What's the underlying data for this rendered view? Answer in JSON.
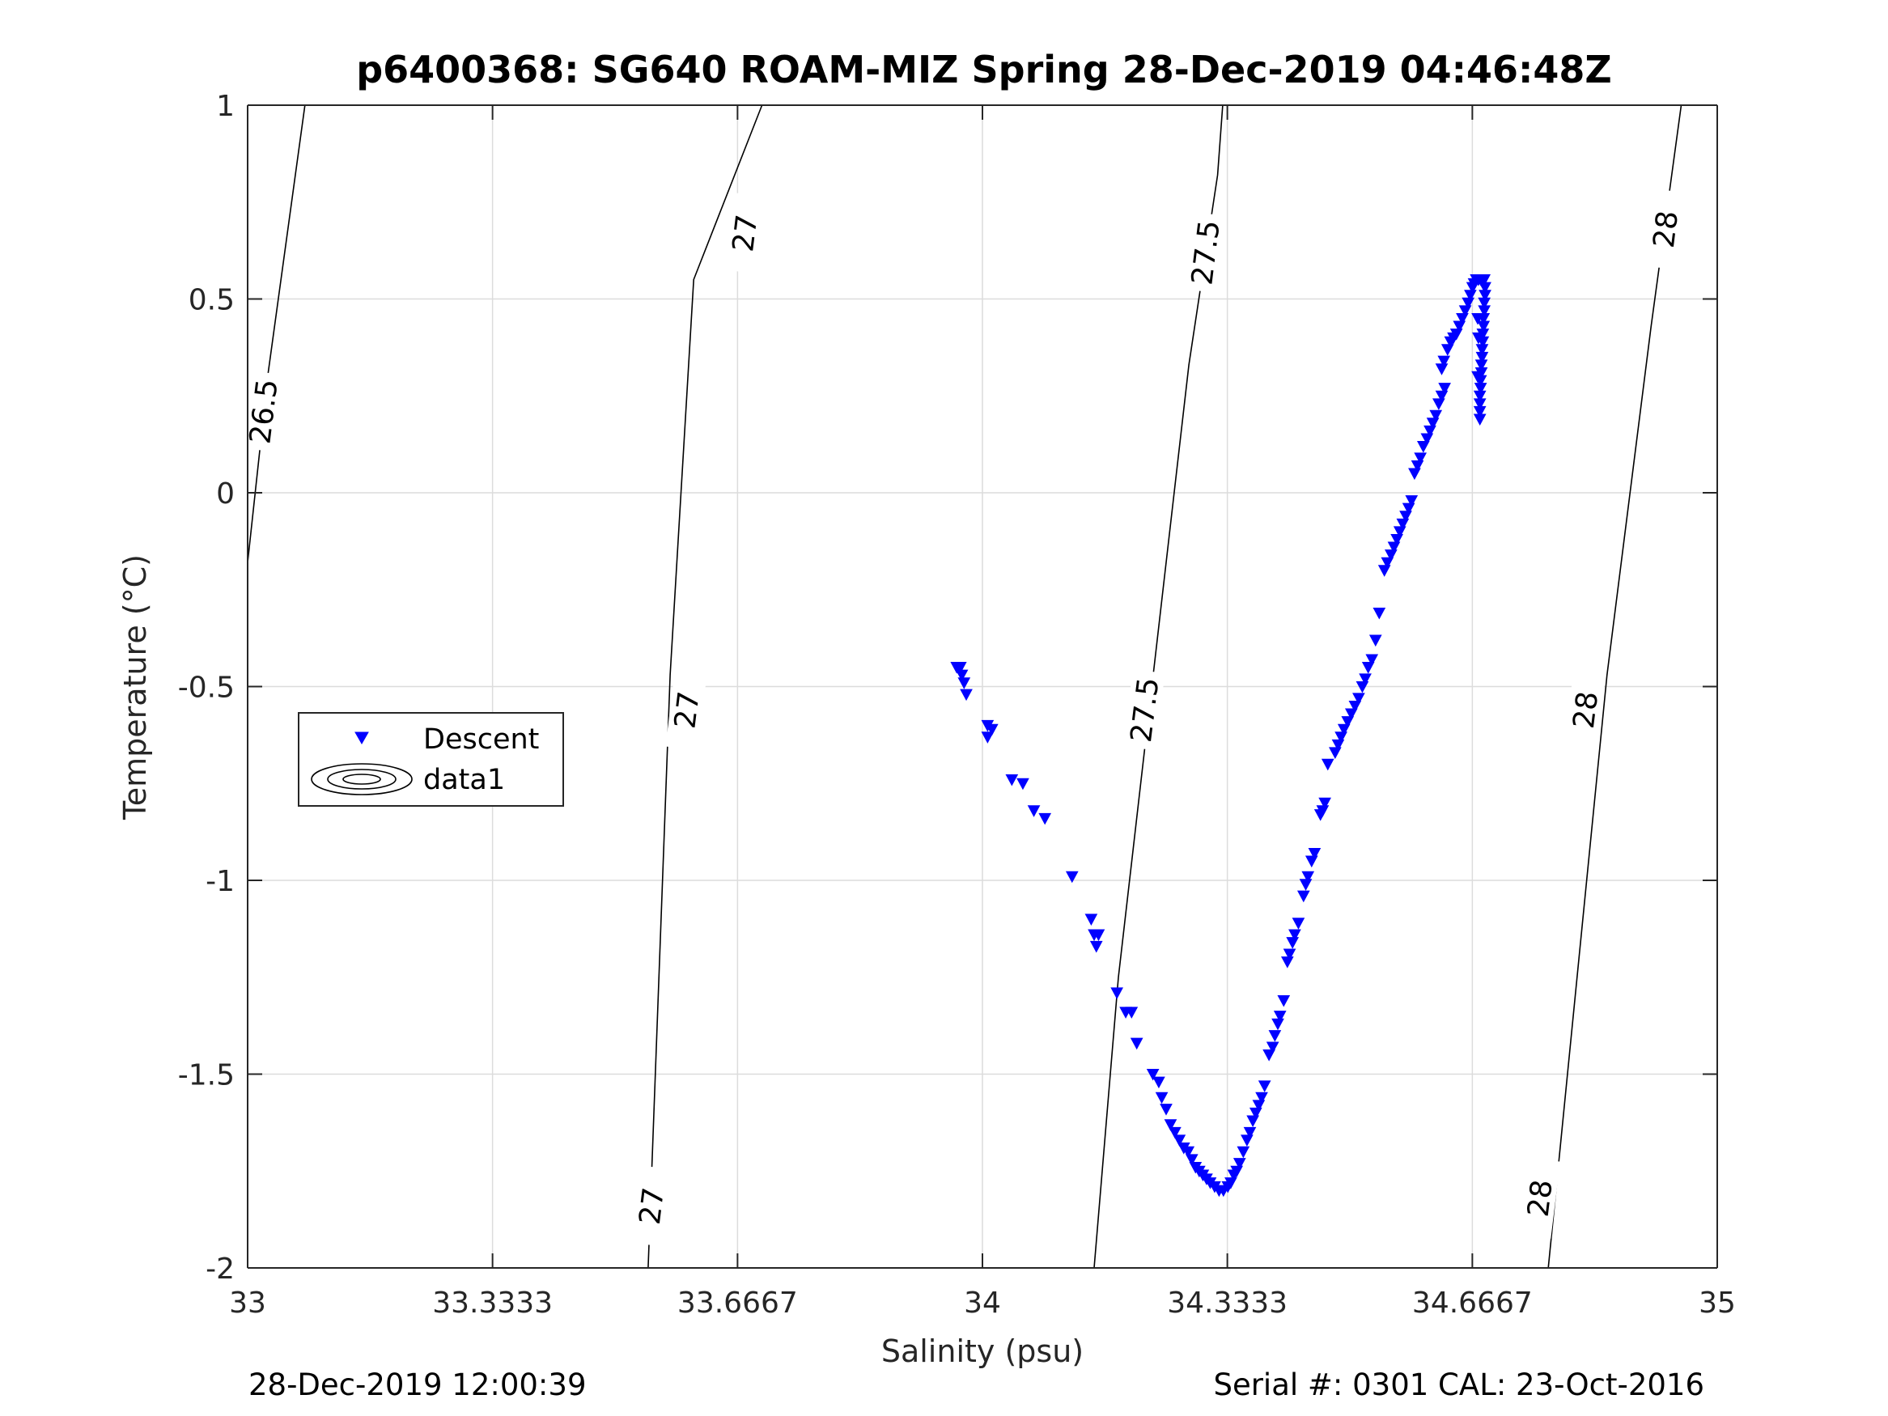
{
  "chart_data": {
    "type": "scatter",
    "title": "p6400368: SG640 ROAM-MIZ Spring 28-Dec-2019 04:46:48Z",
    "xlabel": "Salinity (psu)",
    "ylabel": "Temperature (°C)",
    "xlim": [
      33,
      35
    ],
    "ylim": [
      -2,
      1
    ],
    "xticks": [
      33,
      33.3333,
      33.6667,
      34,
      34.3333,
      34.6667,
      35
    ],
    "xtick_labels": [
      "33",
      "33.3333",
      "33.6667",
      "34",
      "34.3333",
      "34.6667",
      "35"
    ],
    "yticks": [
      -2,
      -1.5,
      -1,
      -0.5,
      0,
      0.5,
      1
    ],
    "ytick_labels": [
      "-2",
      "-1.5",
      "-1",
      "-0.5",
      "0",
      "0.5",
      "1"
    ],
    "grid": true,
    "legend": {
      "placement": "left-middle",
      "entries": [
        {
          "label": "Descent",
          "marker": "triangle-down",
          "color": "#0000ff"
        },
        {
          "label": "data1",
          "marker": "contour",
          "color": "#000000"
        }
      ]
    },
    "series": [
      {
        "name": "Descent",
        "color": "#0000ff",
        "marker": "triangle-down",
        "points": [
          [
            33.965,
            -0.45
          ],
          [
            33.97,
            -0.45
          ],
          [
            33.972,
            -0.47
          ],
          [
            33.975,
            -0.49
          ],
          [
            33.978,
            -0.52
          ],
          [
            34.007,
            -0.6
          ],
          [
            34.013,
            -0.61
          ],
          [
            34.007,
            -0.63
          ],
          [
            34.04,
            -0.74
          ],
          [
            34.055,
            -0.75
          ],
          [
            34.07,
            -0.82
          ],
          [
            34.085,
            -0.84
          ],
          [
            34.122,
            -0.99
          ],
          [
            34.148,
            -1.1
          ],
          [
            34.152,
            -1.14
          ],
          [
            34.158,
            -1.14
          ],
          [
            34.155,
            -1.17
          ],
          [
            34.183,
            -1.29
          ],
          [
            34.195,
            -1.34
          ],
          [
            34.203,
            -1.34
          ],
          [
            34.21,
            -1.42
          ],
          [
            34.232,
            -1.5
          ],
          [
            34.24,
            -1.52
          ],
          [
            34.244,
            -1.56
          ],
          [
            34.25,
            -1.59
          ],
          [
            34.256,
            -1.63
          ],
          [
            34.262,
            -1.65
          ],
          [
            34.268,
            -1.67
          ],
          [
            34.274,
            -1.69
          ],
          [
            34.28,
            -1.7
          ],
          [
            34.285,
            -1.72
          ],
          [
            34.29,
            -1.74
          ],
          [
            34.295,
            -1.75
          ],
          [
            34.3,
            -1.76
          ],
          [
            34.305,
            -1.77
          ],
          [
            34.31,
            -1.78
          ],
          [
            34.316,
            -1.79
          ],
          [
            34.322,
            -1.8
          ],
          [
            34.328,
            -1.8
          ],
          [
            34.334,
            -1.79
          ],
          [
            34.338,
            -1.78
          ],
          [
            34.342,
            -1.76
          ],
          [
            34.346,
            -1.75
          ],
          [
            34.35,
            -1.73
          ],
          [
            34.355,
            -1.7
          ],
          [
            34.36,
            -1.67
          ],
          [
            34.364,
            -1.65
          ],
          [
            34.368,
            -1.62
          ],
          [
            34.372,
            -1.6
          ],
          [
            34.376,
            -1.58
          ],
          [
            34.38,
            -1.56
          ],
          [
            34.384,
            -1.53
          ],
          [
            34.39,
            -1.45
          ],
          [
            34.395,
            -1.43
          ],
          [
            34.398,
            -1.4
          ],
          [
            34.402,
            -1.37
          ],
          [
            34.405,
            -1.35
          ],
          [
            34.41,
            -1.31
          ],
          [
            34.415,
            -1.21
          ],
          [
            34.418,
            -1.19
          ],
          [
            34.422,
            -1.16
          ],
          [
            34.425,
            -1.14
          ],
          [
            34.43,
            -1.11
          ],
          [
            34.437,
            -1.04
          ],
          [
            34.44,
            -1.01
          ],
          [
            34.443,
            -0.99
          ],
          [
            34.448,
            -0.95
          ],
          [
            34.452,
            -0.93
          ],
          [
            34.46,
            -0.83
          ],
          [
            34.463,
            -0.82
          ],
          [
            34.466,
            -0.8
          ],
          [
            34.47,
            -0.7
          ],
          [
            34.48,
            -0.67
          ],
          [
            34.484,
            -0.65
          ],
          [
            34.488,
            -0.63
          ],
          [
            34.492,
            -0.61
          ],
          [
            34.497,
            -0.59
          ],
          [
            34.502,
            -0.57
          ],
          [
            34.507,
            -0.55
          ],
          [
            34.512,
            -0.53
          ],
          [
            34.517,
            -0.5
          ],
          [
            34.521,
            -0.48
          ],
          [
            34.525,
            -0.45
          ],
          [
            34.53,
            -0.43
          ],
          [
            34.535,
            -0.38
          ],
          [
            34.54,
            -0.31
          ],
          [
            34.547,
            -0.2
          ],
          [
            34.551,
            -0.18
          ],
          [
            34.556,
            -0.16
          ],
          [
            34.56,
            -0.14
          ],
          [
            34.564,
            -0.12
          ],
          [
            34.568,
            -0.1
          ],
          [
            34.572,
            -0.08
          ],
          [
            34.576,
            -0.06
          ],
          [
            34.58,
            -0.04
          ],
          [
            34.584,
            -0.02
          ],
          [
            34.588,
            0.05
          ],
          [
            34.592,
            0.07
          ],
          [
            34.596,
            0.09
          ],
          [
            34.6,
            0.12
          ],
          [
            34.605,
            0.14
          ],
          [
            34.609,
            0.16
          ],
          [
            34.613,
            0.18
          ],
          [
            34.617,
            0.2
          ],
          [
            34.621,
            0.23
          ],
          [
            34.625,
            0.25
          ],
          [
            34.629,
            0.27
          ],
          [
            34.625,
            0.32
          ],
          [
            34.628,
            0.34
          ],
          [
            34.633,
            0.37
          ],
          [
            34.637,
            0.39
          ],
          [
            34.641,
            0.4
          ],
          [
            34.645,
            0.41
          ],
          [
            34.649,
            0.43
          ],
          [
            34.653,
            0.45
          ],
          [
            34.657,
            0.47
          ],
          [
            34.661,
            0.49
          ],
          [
            34.664,
            0.51
          ],
          [
            34.667,
            0.53
          ],
          [
            34.669,
            0.54
          ],
          [
            34.672,
            0.55
          ],
          [
            34.675,
            0.55
          ],
          [
            34.678,
            0.55
          ],
          [
            34.68,
            0.55
          ],
          [
            34.683,
            0.55
          ],
          [
            34.684,
            0.53
          ],
          [
            34.684,
            0.51
          ],
          [
            34.683,
            0.49
          ],
          [
            34.683,
            0.47
          ],
          [
            34.682,
            0.45
          ],
          [
            34.682,
            0.43
          ],
          [
            34.681,
            0.41
          ],
          [
            34.681,
            0.39
          ],
          [
            34.68,
            0.37
          ],
          [
            34.68,
            0.35
          ],
          [
            34.679,
            0.33
          ],
          [
            34.679,
            0.31
          ],
          [
            34.678,
            0.29
          ],
          [
            34.678,
            0.27
          ],
          [
            34.677,
            0.25
          ],
          [
            34.677,
            0.23
          ],
          [
            34.677,
            0.21
          ],
          [
            34.677,
            0.19
          ],
          [
            34.674,
            0.3
          ],
          [
            34.675,
            0.4
          ],
          [
            34.674,
            0.45
          ]
        ]
      }
    ],
    "contours": [
      {
        "label": "26.5",
        "lines": [
          [
            [
              33.0,
              -0.18
            ],
            [
              33.028,
              0.31
            ],
            [
              33.078,
              1.0
            ]
          ]
        ],
        "label_positions": [
          [
            33.021,
            0.21
          ]
        ]
      },
      {
        "label": "27",
        "lines": [
          [
            [
              33.545,
              -2.0
            ],
            [
              33.575,
              -0.47
            ],
            [
              33.607,
              0.55
            ],
            [
              33.7,
              1.0
            ]
          ]
        ],
        "label_positions": [
          [
            33.549,
            -1.84
          ],
          [
            33.597,
            -0.56
          ],
          [
            33.676,
            0.67
          ]
        ]
      },
      {
        "label": "27.5",
        "lines": [
          [
            [
              34.152,
              -2.0
            ],
            [
              34.185,
              -1.25
            ],
            [
              34.281,
              0.33
            ],
            [
              34.32,
              0.82
            ],
            [
              34.327,
              1.0
            ]
          ]
        ],
        "label_positions": [
          [
            34.22,
            -0.56
          ],
          [
            34.303,
            0.62
          ]
        ]
      },
      {
        "label": "28",
        "lines": [
          [
            [
              34.77,
              -2.0
            ],
            [
              34.85,
              -0.47
            ],
            [
              34.91,
              0.43
            ],
            [
              34.951,
              1.0
            ]
          ]
        ],
        "label_positions": [
          [
            34.758,
            -1.82
          ],
          [
            34.82,
            -0.56
          ],
          [
            34.929,
            0.68
          ]
        ]
      }
    ]
  },
  "footer": {
    "left": "28-Dec-2019 12:00:39",
    "right": "Serial #: 0301  CAL: 23-Oct-2016"
  }
}
